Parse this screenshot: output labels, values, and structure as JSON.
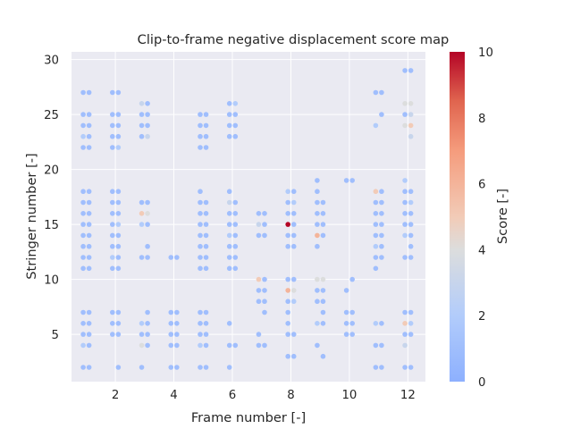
{
  "chart_data": {
    "type": "scatter",
    "title": "Clip-to-frame negative displacement score map",
    "xlabel": "Frame number [-]",
    "ylabel": "Stringer number [-]",
    "xlim": [
      0.5,
      12.6
    ],
    "ylim": [
      0.7,
      30.7
    ],
    "xticks": [
      2,
      4,
      6,
      8,
      10,
      12
    ],
    "yticks": [
      5,
      10,
      15,
      20,
      25,
      30
    ],
    "grid": true,
    "colorbar": {
      "label": "Score [-]",
      "colormap": "coolwarm",
      "range": [
        0,
        10
      ],
      "ticks": [
        0,
        2,
        4,
        6,
        8,
        10
      ]
    },
    "colors": {
      "plot_background": "#eaeaf2",
      "grid": "#ffffff",
      "text": "#262626"
    },
    "points": [
      [
        0.9,
        27,
        1
      ],
      [
        1.1,
        27,
        1
      ],
      [
        0.9,
        25,
        1
      ],
      [
        1.1,
        25,
        1
      ],
      [
        0.9,
        24,
        1
      ],
      [
        1.1,
        24,
        1
      ],
      [
        0.9,
        23,
        2
      ],
      [
        1.1,
        23,
        1
      ],
      [
        0.9,
        22,
        1
      ],
      [
        1.1,
        22,
        1
      ],
      [
        0.9,
        18,
        1
      ],
      [
        1.1,
        18,
        1
      ],
      [
        0.9,
        17,
        1
      ],
      [
        1.1,
        17,
        1
      ],
      [
        0.9,
        16,
        1
      ],
      [
        1.1,
        16,
        1
      ],
      [
        0.9,
        15,
        1
      ],
      [
        1.1,
        15,
        1
      ],
      [
        0.9,
        14,
        1
      ],
      [
        1.1,
        14,
        1
      ],
      [
        0.9,
        13,
        1
      ],
      [
        1.1,
        13,
        1
      ],
      [
        0.9,
        12,
        1
      ],
      [
        1.1,
        12,
        1
      ],
      [
        0.9,
        11,
        1
      ],
      [
        1.1,
        11,
        1
      ],
      [
        0.9,
        7,
        1
      ],
      [
        1.1,
        7,
        1
      ],
      [
        0.9,
        6,
        1
      ],
      [
        1.1,
        6,
        1
      ],
      [
        0.9,
        5,
        1
      ],
      [
        1.1,
        5,
        1
      ],
      [
        0.9,
        4,
        2
      ],
      [
        1.1,
        4,
        1
      ],
      [
        0.9,
        2,
        1
      ],
      [
        1.1,
        2,
        1
      ],
      [
        1.9,
        27,
        1
      ],
      [
        2.1,
        27,
        1
      ],
      [
        1.9,
        25,
        1
      ],
      [
        2.1,
        25,
        1
      ],
      [
        1.9,
        24,
        1
      ],
      [
        2.1,
        24,
        1
      ],
      [
        1.9,
        23,
        1
      ],
      [
        2.1,
        23,
        1
      ],
      [
        1.9,
        22,
        1
      ],
      [
        2.1,
        22,
        2
      ],
      [
        1.9,
        18,
        1
      ],
      [
        2.1,
        18,
        1
      ],
      [
        1.9,
        17,
        1
      ],
      [
        2.1,
        17,
        1
      ],
      [
        1.9,
        16,
        1
      ],
      [
        2.1,
        16,
        1
      ],
      [
        1.9,
        15,
        1
      ],
      [
        2.1,
        15,
        2
      ],
      [
        1.9,
        14,
        1
      ],
      [
        2.1,
        14,
        1
      ],
      [
        1.9,
        13,
        1
      ],
      [
        2.1,
        13,
        1
      ],
      [
        1.9,
        12,
        2
      ],
      [
        2.1,
        12,
        1
      ],
      [
        1.9,
        11,
        1
      ],
      [
        2.1,
        11,
        1
      ],
      [
        1.9,
        7,
        1
      ],
      [
        2.1,
        7,
        1
      ],
      [
        1.9,
        6,
        1
      ],
      [
        2.1,
        6,
        1
      ],
      [
        1.9,
        5,
        1
      ],
      [
        2.1,
        5,
        1
      ],
      [
        2.1,
        2,
        1
      ],
      [
        2.9,
        26,
        3
      ],
      [
        3.1,
        26,
        1
      ],
      [
        2.9,
        25,
        1
      ],
      [
        3.1,
        25,
        1
      ],
      [
        2.9,
        24,
        1
      ],
      [
        3.1,
        24,
        1
      ],
      [
        2.9,
        23,
        1
      ],
      [
        3.1,
        23,
        3
      ],
      [
        2.9,
        17,
        1
      ],
      [
        3.1,
        17,
        1
      ],
      [
        2.9,
        16,
        5
      ],
      [
        3.1,
        16,
        4
      ],
      [
        2.9,
        15,
        2
      ],
      [
        3.1,
        15,
        1
      ],
      [
        3.1,
        13,
        1
      ],
      [
        2.9,
        12,
        1
      ],
      [
        3.1,
        12,
        1
      ],
      [
        3.1,
        7,
        1
      ],
      [
        2.9,
        6,
        2
      ],
      [
        3.1,
        6,
        1
      ],
      [
        2.9,
        5,
        1
      ],
      [
        3.1,
        5,
        1
      ],
      [
        2.9,
        4,
        4
      ],
      [
        3.1,
        4,
        1
      ],
      [
        2.9,
        2,
        1
      ],
      [
        3.9,
        12,
        1
      ],
      [
        4.1,
        12,
        1
      ],
      [
        3.9,
        7,
        1
      ],
      [
        4.1,
        7,
        1
      ],
      [
        3.9,
        6,
        1
      ],
      [
        4.1,
        6,
        1
      ],
      [
        3.9,
        5,
        1
      ],
      [
        4.1,
        5,
        1
      ],
      [
        3.9,
        4,
        1
      ],
      [
        4.1,
        4,
        1
      ],
      [
        3.9,
        2,
        1
      ],
      [
        4.1,
        2,
        1
      ],
      [
        4.9,
        25,
        1
      ],
      [
        5.1,
        25,
        1
      ],
      [
        4.9,
        24,
        1
      ],
      [
        5.1,
        24,
        1
      ],
      [
        4.9,
        23,
        1
      ],
      [
        5.1,
        23,
        1
      ],
      [
        4.9,
        22,
        1
      ],
      [
        5.1,
        22,
        1
      ],
      [
        4.9,
        18,
        1
      ],
      [
        4.9,
        17,
        1
      ],
      [
        5.1,
        17,
        1
      ],
      [
        4.9,
        16,
        1
      ],
      [
        5.1,
        16,
        1
      ],
      [
        4.9,
        15,
        1
      ],
      [
        5.1,
        15,
        1
      ],
      [
        4.9,
        14,
        1
      ],
      [
        5.1,
        14,
        1
      ],
      [
        4.9,
        13,
        1
      ],
      [
        5.1,
        13,
        1
      ],
      [
        4.9,
        12,
        1
      ],
      [
        5.1,
        12,
        1
      ],
      [
        4.9,
        11,
        1
      ],
      [
        5.1,
        11,
        1
      ],
      [
        4.9,
        7,
        1
      ],
      [
        5.1,
        7,
        1
      ],
      [
        4.9,
        6,
        1
      ],
      [
        5.1,
        6,
        1
      ],
      [
        4.9,
        5,
        1
      ],
      [
        5.1,
        5,
        1
      ],
      [
        4.9,
        4,
        2
      ],
      [
        5.1,
        4,
        1
      ],
      [
        4.9,
        2,
        1
      ],
      [
        5.1,
        2,
        1
      ],
      [
        5.9,
        26,
        1
      ],
      [
        6.1,
        26,
        2
      ],
      [
        5.9,
        25,
        1
      ],
      [
        6.1,
        25,
        1
      ],
      [
        5.9,
        24,
        1
      ],
      [
        6.1,
        24,
        1
      ],
      [
        5.9,
        23,
        1
      ],
      [
        6.1,
        23,
        1
      ],
      [
        5.9,
        18,
        1
      ],
      [
        5.9,
        17,
        3
      ],
      [
        6.1,
        17,
        1
      ],
      [
        5.9,
        16,
        1
      ],
      [
        6.1,
        16,
        1
      ],
      [
        5.9,
        15,
        1
      ],
      [
        6.1,
        15,
        1
      ],
      [
        5.9,
        14,
        2
      ],
      [
        6.1,
        14,
        1
      ],
      [
        5.9,
        13,
        1
      ],
      [
        6.1,
        13,
        1
      ],
      [
        5.9,
        12,
        1
      ],
      [
        6.1,
        12,
        1
      ],
      [
        5.9,
        11,
        1
      ],
      [
        6.1,
        11,
        1
      ],
      [
        5.9,
        6,
        1
      ],
      [
        5.9,
        4,
        1
      ],
      [
        6.1,
        4,
        1
      ],
      [
        5.9,
        2,
        1
      ],
      [
        6.9,
        16,
        1
      ],
      [
        7.1,
        16,
        1
      ],
      [
        6.9,
        15,
        3
      ],
      [
        7.1,
        15,
        1
      ],
      [
        6.9,
        14,
        1
      ],
      [
        7.1,
        14,
        1
      ],
      [
        6.9,
        10,
        5
      ],
      [
        7.1,
        10,
        1
      ],
      [
        6.9,
        9,
        1
      ],
      [
        7.1,
        9,
        1
      ],
      [
        6.9,
        8,
        1
      ],
      [
        7.1,
        8,
        1
      ],
      [
        7.1,
        7,
        1
      ],
      [
        6.9,
        5,
        1
      ],
      [
        6.9,
        4,
        1
      ],
      [
        7.1,
        4,
        1
      ],
      [
        7.9,
        18,
        2
      ],
      [
        8.1,
        18,
        1
      ],
      [
        7.9,
        17,
        1
      ],
      [
        8.1,
        17,
        2
      ],
      [
        7.9,
        16,
        1
      ],
      [
        8.1,
        16,
        1
      ],
      [
        7.9,
        15,
        10
      ],
      [
        8.1,
        15,
        1
      ],
      [
        7.9,
        14,
        1
      ],
      [
        8.1,
        14,
        1
      ],
      [
        7.9,
        13,
        1
      ],
      [
        8.1,
        13,
        1
      ],
      [
        7.9,
        10,
        1
      ],
      [
        8.1,
        10,
        1
      ],
      [
        7.9,
        9,
        6
      ],
      [
        8.1,
        9,
        4
      ],
      [
        7.9,
        8,
        1
      ],
      [
        8.1,
        8,
        2
      ],
      [
        7.9,
        7,
        1
      ],
      [
        7.9,
        6,
        1
      ],
      [
        7.9,
        5,
        1
      ],
      [
        8.1,
        5,
        1
      ],
      [
        7.9,
        3,
        1
      ],
      [
        8.1,
        3,
        1
      ],
      [
        8.9,
        19,
        1
      ],
      [
        8.9,
        18,
        1
      ],
      [
        8.9,
        17,
        1
      ],
      [
        9.1,
        17,
        1
      ],
      [
        8.9,
        16,
        1
      ],
      [
        9.1,
        16,
        1
      ],
      [
        8.9,
        15,
        1
      ],
      [
        9.1,
        15,
        1
      ],
      [
        8.9,
        14,
        6
      ],
      [
        9.1,
        14,
        1
      ],
      [
        8.9,
        13,
        1
      ],
      [
        8.9,
        10,
        4
      ],
      [
        9.1,
        10,
        4
      ],
      [
        8.9,
        9,
        1
      ],
      [
        9.1,
        9,
        1
      ],
      [
        8.9,
        8,
        1
      ],
      [
        9.1,
        8,
        1
      ],
      [
        9.1,
        7,
        1
      ],
      [
        8.9,
        6,
        2
      ],
      [
        9.1,
        6,
        1
      ],
      [
        8.9,
        4,
        1
      ],
      [
        9.1,
        3,
        1
      ],
      [
        9.9,
        19,
        1
      ],
      [
        10.1,
        19,
        1
      ],
      [
        10.1,
        10,
        1
      ],
      [
        9.9,
        9,
        1
      ],
      [
        9.9,
        7,
        1
      ],
      [
        10.1,
        7,
        1
      ],
      [
        9.9,
        6,
        1
      ],
      [
        10.1,
        6,
        1
      ],
      [
        9.9,
        5,
        1
      ],
      [
        10.1,
        5,
        1
      ],
      [
        10.9,
        27,
        1
      ],
      [
        11.1,
        27,
        1
      ],
      [
        11.1,
        25,
        1
      ],
      [
        10.9,
        24,
        2
      ],
      [
        10.9,
        18,
        5
      ],
      [
        11.1,
        18,
        1
      ],
      [
        10.9,
        17,
        1
      ],
      [
        11.1,
        17,
        1
      ],
      [
        10.9,
        16,
        1
      ],
      [
        11.1,
        16,
        1
      ],
      [
        10.9,
        15,
        1
      ],
      [
        11.1,
        15,
        1
      ],
      [
        10.9,
        14,
        1
      ],
      [
        11.1,
        14,
        1
      ],
      [
        10.9,
        13,
        2
      ],
      [
        11.1,
        13,
        1
      ],
      [
        10.9,
        12,
        1
      ],
      [
        11.1,
        12,
        1
      ],
      [
        10.9,
        11,
        1
      ],
      [
        10.9,
        6,
        2
      ],
      [
        11.1,
        6,
        1
      ],
      [
        10.9,
        4,
        1
      ],
      [
        11.1,
        4,
        1
      ],
      [
        10.9,
        2,
        1
      ],
      [
        11.1,
        2,
        1
      ],
      [
        11.9,
        29,
        1
      ],
      [
        12.1,
        29,
        1
      ],
      [
        11.9,
        26,
        4
      ],
      [
        12.1,
        26,
        4
      ],
      [
        11.9,
        25,
        1
      ],
      [
        12.1,
        25,
        3
      ],
      [
        11.9,
        24,
        4
      ],
      [
        12.1,
        24,
        5
      ],
      [
        12.1,
        23,
        3
      ],
      [
        11.9,
        19,
        2
      ],
      [
        11.9,
        18,
        1
      ],
      [
        12.1,
        18,
        1
      ],
      [
        11.9,
        17,
        1
      ],
      [
        12.1,
        17,
        2
      ],
      [
        11.9,
        16,
        1
      ],
      [
        12.1,
        16,
        1
      ],
      [
        11.9,
        15,
        1
      ],
      [
        12.1,
        15,
        1
      ],
      [
        11.9,
        14,
        2
      ],
      [
        12.1,
        14,
        1
      ],
      [
        12.1,
        13,
        1
      ],
      [
        11.9,
        12,
        1
      ],
      [
        12.1,
        12,
        1
      ],
      [
        11.9,
        7,
        1
      ],
      [
        12.1,
        7,
        1
      ],
      [
        11.9,
        6,
        5
      ],
      [
        12.1,
        6,
        2
      ],
      [
        11.9,
        5,
        1
      ],
      [
        12.1,
        5,
        1
      ],
      [
        11.9,
        4,
        3
      ],
      [
        11.9,
        2,
        1
      ],
      [
        12.1,
        2,
        1
      ]
    ]
  }
}
